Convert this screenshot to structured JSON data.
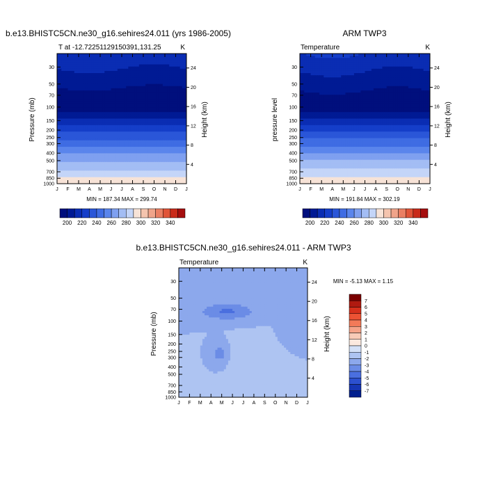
{
  "chart_data": [
    {
      "type": "heatmap",
      "title": "b.e13.BHISTC5CN.ne30_g16.sehires24.011 (yrs 1986-2005)",
      "subtitle_left": "T at -12.72251129150391,131.25",
      "units": "K",
      "ylabel": "Pressure (mb)",
      "ylabel_right": "Height (km)",
      "x_ticks": [
        "J",
        "F",
        "M",
        "A",
        "M",
        "J",
        "J",
        "A",
        "S",
        "O",
        "N",
        "D",
        "J"
      ],
      "y_ticks": [
        30,
        50,
        70,
        100,
        150,
        200,
        250,
        300,
        400,
        500,
        700,
        850,
        1000
      ],
      "y_ticks_right": [
        24,
        20,
        16,
        12,
        8,
        4
      ],
      "ylim": [
        1000,
        20
      ],
      "minmax_text": "MIN = 187.34 MAX = 299.74",
      "min": 187.34,
      "max": 299.74,
      "colorbar_labels": [
        "200",
        "220",
        "240",
        "260",
        "280",
        "300",
        "320",
        "340"
      ],
      "colorbar_levels": [
        190,
        200,
        210,
        220,
        230,
        240,
        250,
        260,
        270,
        280,
        290,
        300,
        310,
        320,
        330,
        340,
        350
      ]
    },
    {
      "type": "heatmap",
      "title": "ARM TWP3",
      "subtitle_left": "Temperature",
      "units": "K",
      "ylabel": "pressure level",
      "ylabel_right": "Height (km)",
      "x_ticks": [
        "J",
        "F",
        "M",
        "A",
        "M",
        "J",
        "J",
        "A",
        "S",
        "O",
        "N",
        "D",
        "J"
      ],
      "y_ticks": [
        30,
        50,
        70,
        100,
        150,
        200,
        250,
        300,
        400,
        500,
        700,
        850,
        1000
      ],
      "y_ticks_right": [
        24,
        20,
        16,
        12,
        8,
        4
      ],
      "ylim": [
        1000,
        20
      ],
      "minmax_text": "MIN = 191.84 MAX = 302.19",
      "min": 191.84,
      "max": 302.19,
      "colorbar_labels": [
        "200",
        "220",
        "240",
        "260",
        "280",
        "300",
        "320",
        "340"
      ],
      "colorbar_levels": [
        190,
        200,
        210,
        220,
        230,
        240,
        250,
        260,
        270,
        280,
        290,
        300,
        310,
        320,
        330,
        340,
        350
      ]
    },
    {
      "type": "heatmap",
      "title": "b.e13.BHISTC5CN.ne30_g16.sehires24.011 - ARM TWP3",
      "subtitle_left": "Temperature",
      "units": "K",
      "ylabel": "Pressure (mb)",
      "ylabel_right": "Height (km)",
      "x_ticks": [
        "J",
        "F",
        "M",
        "A",
        "M",
        "J",
        "J",
        "A",
        "S",
        "O",
        "N",
        "D",
        "J"
      ],
      "y_ticks": [
        30,
        50,
        70,
        100,
        150,
        200,
        250,
        300,
        400,
        500,
        700,
        850,
        1000
      ],
      "y_ticks_right": [
        24,
        20,
        16,
        12,
        8,
        4
      ],
      "ylim": [
        1000,
        20
      ],
      "minmax_text": "MIN = -5.13 MAX =  1.15",
      "min": -5.13,
      "max": 1.15,
      "colorbar_labels": [
        "7",
        "6",
        "5",
        "4",
        "3",
        "2",
        "1",
        "0",
        "-1",
        "-2",
        "-3",
        "-4",
        "-5",
        "-6",
        "-7"
      ],
      "colorbar_levels": [
        7,
        6,
        5,
        4,
        3,
        2,
        1,
        0,
        -1,
        -2,
        -3,
        -4,
        -5,
        -6,
        -7
      ]
    }
  ],
  "colors": {
    "blue_scale": [
      "#000f7d",
      "#001a94",
      "#0a2db3",
      "#153ec9",
      "#2a56d8",
      "#3f6ce3",
      "#5a85ec",
      "#7fa0f0",
      "#a3bdf4",
      "#c4d5f8",
      "#f7e3d7",
      "#f4c4ae",
      "#f0a48a",
      "#ea7f63",
      "#e05438",
      "#c92b1a",
      "#a50e0e"
    ],
    "diff_scale": [
      "#7a0000",
      "#b01a10",
      "#d6301c",
      "#ec5234",
      "#f37a58",
      "#f5a388",
      "#f8cbb7",
      "#fbe9df",
      "#d3e0f7",
      "#aec4f2",
      "#8ca8ec",
      "#6b8ce6",
      "#4a6fdf",
      "#2c50cf",
      "#1636b4",
      "#001f8e"
    ]
  }
}
